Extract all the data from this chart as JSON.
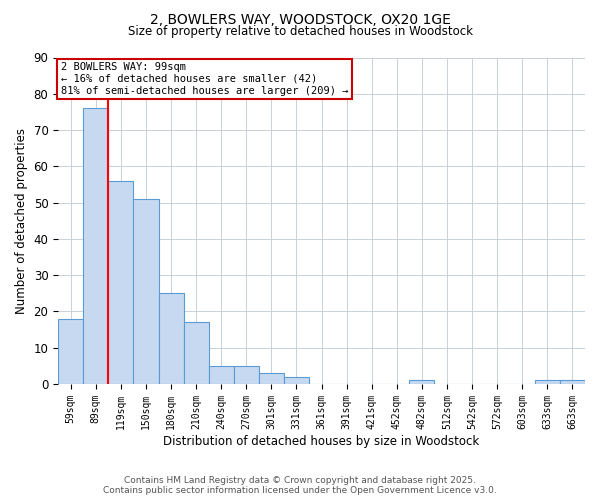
{
  "title_line1": "2, BOWLERS WAY, WOODSTOCK, OX20 1GE",
  "title_line2": "Size of property relative to detached houses in Woodstock",
  "xlabel": "Distribution of detached houses by size in Woodstock",
  "ylabel": "Number of detached properties",
  "bins": [
    "59sqm",
    "89sqm",
    "119sqm",
    "150sqm",
    "180sqm",
    "210sqm",
    "240sqm",
    "270sqm",
    "301sqm",
    "331sqm",
    "361sqm",
    "391sqm",
    "421sqm",
    "452sqm",
    "482sqm",
    "512sqm",
    "542sqm",
    "572sqm",
    "603sqm",
    "633sqm",
    "663sqm"
  ],
  "values": [
    18,
    76,
    56,
    51,
    25,
    17,
    5,
    5,
    3,
    2,
    0,
    0,
    0,
    0,
    1,
    0,
    0,
    0,
    0,
    1,
    1
  ],
  "bar_color": "#c6d9f0",
  "bar_edgecolor": "#5b9bd5",
  "red_line_x": 1.5,
  "ylim": [
    0,
    90
  ],
  "yticks": [
    0,
    10,
    20,
    30,
    40,
    50,
    60,
    70,
    80,
    90
  ],
  "annotation_title": "2 BOWLERS WAY: 99sqm",
  "annotation_line1": "← 16% of detached houses are smaller (42)",
  "annotation_line2": "81% of semi-detached houses are larger (209) →",
  "annotation_box_color": "#ffffff",
  "annotation_box_edgecolor": "#cc0000",
  "footer_line1": "Contains HM Land Registry data © Crown copyright and database right 2025.",
  "footer_line2": "Contains public sector information licensed under the Open Government Licence v3.0.",
  "background_color": "#ffffff",
  "grid_color": "#c8d0d8"
}
